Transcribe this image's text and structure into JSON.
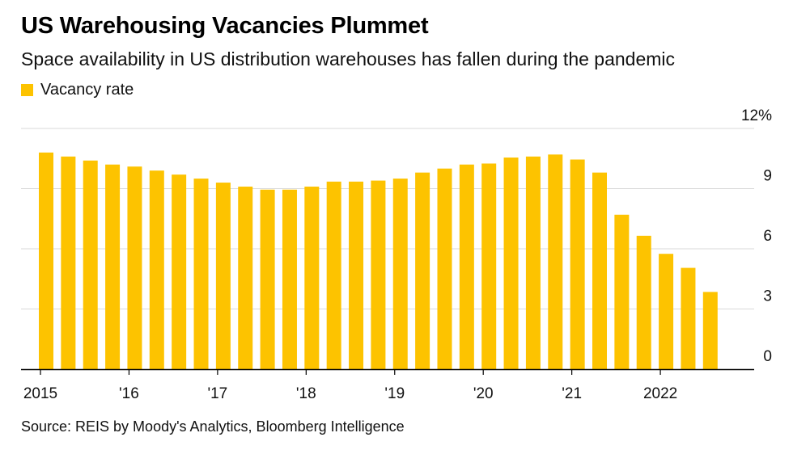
{
  "title": "US Warehousing Vacancies Plummet",
  "subtitle": "Space availability in US distribution warehouses has fallen during the pandemic",
  "source": "Source: REIS by Moody's Analytics, Bloomberg Intelligence",
  "colors": {
    "bar": "#FDC300",
    "grid": "#d9d9d9",
    "axis": "#000000"
  },
  "chart_data": {
    "type": "bar",
    "title": "US Warehousing Vacancies Plummet",
    "legend": [
      "Vacancy rate"
    ],
    "legend_position": "top-left",
    "ylabel": "",
    "ylim": [
      0,
      12
    ],
    "y_axis_side": "right",
    "y_ticks": [
      0,
      3,
      6,
      9,
      12
    ],
    "y_tick_labels": [
      "0",
      "3",
      "6",
      "9",
      "12%"
    ],
    "grid": true,
    "x_tick_labels": [
      "2015",
      "'16",
      "'17",
      "'18",
      "'19",
      "'20",
      "'21",
      "2022"
    ],
    "series": [
      {
        "name": "Vacancy rate",
        "quarters": [
          "2015Q1",
          "2015Q2",
          "2015Q3",
          "2015Q4",
          "2016Q1",
          "2016Q2",
          "2016Q3",
          "2016Q4",
          "2017Q1",
          "2017Q2",
          "2017Q3",
          "2017Q4",
          "2018Q1",
          "2018Q2",
          "2018Q3",
          "2018Q4",
          "2019Q1",
          "2019Q2",
          "2019Q3",
          "2019Q4",
          "2020Q1",
          "2020Q2",
          "2020Q3",
          "2020Q4",
          "2021Q1",
          "2021Q2",
          "2021Q3",
          "2021Q4",
          "2022Q1",
          "2022Q2",
          "2022Q3"
        ],
        "values": [
          10.8,
          10.6,
          10.4,
          10.2,
          10.1,
          9.9,
          9.7,
          9.5,
          9.3,
          9.1,
          8.95,
          8.95,
          9.1,
          9.35,
          9.35,
          9.4,
          9.5,
          9.8,
          10.0,
          10.2,
          10.25,
          10.55,
          10.6,
          10.7,
          10.45,
          9.8,
          7.7,
          6.65,
          5.75,
          5.05,
          3.85
        ]
      }
    ]
  }
}
